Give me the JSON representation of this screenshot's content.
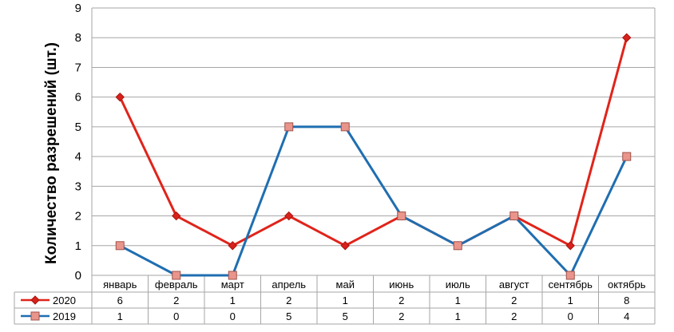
{
  "chart_data": {
    "type": "line",
    "title": "",
    "xlabel": "",
    "ylabel": "Количество разрешений (шт.)",
    "categories": [
      "январь",
      "февраль",
      "март",
      "апрель",
      "май",
      "июнь",
      "июль",
      "август",
      "сентябрь",
      "октябрь"
    ],
    "ylim": [
      0,
      9
    ],
    "yticks": [
      "0",
      "1",
      "2",
      "3",
      "4",
      "5",
      "6",
      "7",
      "8",
      "9"
    ],
    "grid": true,
    "legend": "data-table",
    "series": [
      {
        "name": "2020",
        "values": [
          6,
          2,
          1,
          2,
          1,
          2,
          1,
          2,
          1,
          8
        ],
        "color": "#e0241b",
        "marker": "diamond"
      },
      {
        "name": "2019",
        "values": [
          1,
          0,
          0,
          5,
          5,
          2,
          1,
          2,
          0,
          4
        ],
        "color": "#1f6eb1",
        "marker": "square"
      }
    ]
  }
}
